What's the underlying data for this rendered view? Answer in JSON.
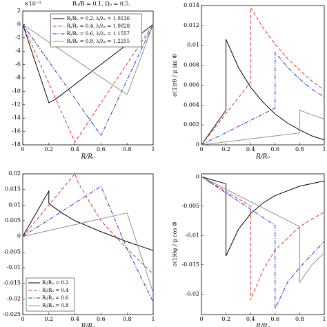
{
  "chart_data": [
    {
      "type": "line",
      "x_label": "R/Rₒ",
      "annotations": [
        "×10⁻³",
        "Rₒ/B = 0.1, Ωₒ = 0.5."
      ],
      "xlim": [
        0,
        1
      ],
      "xticks": [
        0,
        0.2,
        0.4,
        0.6,
        0.8,
        1
      ],
      "ylim": [
        -18,
        2
      ],
      "yticks": [
        2,
        0,
        -2,
        -4,
        -6,
        -8,
        -10,
        -12,
        -14,
        -16,
        -18
      ],
      "legend": "upper center",
      "series": [
        {
          "name": "Rᵢ/Rₒ = 0.2, λ/λₒ = 1.0236",
          "color": "#000000",
          "linestyle": "solid",
          "x": [
            0,
            0.2,
            0.25,
            1
          ],
          "values": [
            0,
            -11.7,
            -11.2,
            0
          ]
        },
        {
          "name": "Rᵢ/Rₒ = 0.4, λ/λₒ = 1.0828",
          "color": "#e03030",
          "linestyle": "dashed",
          "x": [
            0,
            0.4,
            1
          ],
          "values": [
            0,
            -17.6,
            0
          ]
        },
        {
          "name": "Rᵢ/Rₒ = 0.6, λ/λₒ = 1.1557",
          "color": "#2030d0",
          "linestyle": "dashdot",
          "x": [
            0,
            0.6,
            1
          ],
          "values": [
            0,
            -16.6,
            0
          ]
        },
        {
          "name": "Rᵢ/Rₒ = 0.8, λ/λₒ = 1.2255",
          "color": "#909090",
          "linestyle": "solid",
          "x": [
            0,
            0.8,
            1
          ],
          "values": [
            0,
            -10.5,
            0
          ]
        }
      ]
    },
    {
      "type": "line",
      "x_label": "R/Rₒ",
      "y_label": "σ(1)rθ / μ sin Φ",
      "xlim": [
        0,
        1
      ],
      "xticks": [
        0,
        0.2,
        0.4,
        0.6,
        0.8,
        1
      ],
      "ylim": [
        0,
        0.014
      ],
      "yticks": [
        0,
        0.002,
        0.004,
        0.006,
        0.008,
        0.01,
        0.012,
        0.014
      ],
      "series": [
        {
          "color": "#000000",
          "linestyle": "solid",
          "x": [
            0,
            0.2,
            0.2,
            0.3,
            0.4,
            0.5,
            0.6,
            0.7,
            0.8,
            0.9,
            1
          ],
          "values": [
            0,
            0.0035,
            0.0106,
            0.0078,
            0.0058,
            0.0043,
            0.0031,
            0.0022,
            0.0015,
            0.0009,
            0.0005
          ]
        },
        {
          "color": "#e03030",
          "linestyle": "dashed",
          "x": [
            0,
            0.4,
            0.4,
            0.5,
            0.6,
            0.7,
            0.8,
            0.9,
            1
          ],
          "values": [
            0,
            0.0063,
            0.0138,
            0.0118,
            0.0101,
            0.0087,
            0.0075,
            0.0064,
            0.0055
          ]
        },
        {
          "color": "#2030d0",
          "linestyle": "dashdot",
          "x": [
            0,
            0.6,
            0.6,
            0.7,
            0.8,
            0.9,
            1
          ],
          "values": [
            0,
            0.0037,
            0.0093,
            0.0078,
            0.0066,
            0.0056,
            0.0048
          ]
        },
        {
          "color": "#909090",
          "linestyle": "solid",
          "x": [
            0,
            0.8,
            0.8,
            0.9,
            1
          ],
          "values": [
            0,
            0.0012,
            0.0035,
            0.003,
            0.0026
          ]
        }
      ]
    },
    {
      "type": "line",
      "x_label": "R/Rₒ",
      "xlim": [
        0,
        1
      ],
      "xticks": [
        0,
        0.2,
        0.4,
        0.6,
        0.8,
        1
      ],
      "ylim": [
        -0.025,
        0.02
      ],
      "yticks": [
        0.02,
        0.015,
        0.01,
        0.005,
        0,
        -0.005,
        -0.01,
        -0.015,
        -0.02,
        -0.025
      ],
      "legend": "lower left",
      "series": [
        {
          "name": "Rᵢ/Rₒ = 0.2",
          "color": "#000000",
          "linestyle": "solid",
          "x": [
            0,
            0.2,
            0.2,
            0.3,
            0.4,
            0.6,
            0.8,
            1
          ],
          "values": [
            0,
            0.0145,
            0.0105,
            0.0075,
            0.005,
            0.0015,
            -0.0017,
            -0.0045
          ]
        },
        {
          "name": "Rᵢ/Rₒ = 0.4",
          "color": "#e03030",
          "linestyle": "dashed",
          "x": [
            0,
            0.4,
            0.42,
            0.6,
            0.8,
            1
          ],
          "values": [
            0,
            0.02,
            0.0175,
            0.005,
            -0.004,
            -0.012
          ]
        },
        {
          "name": "Rᵢ/Rₒ = 0.6",
          "color": "#2030d0",
          "linestyle": "dashdot",
          "x": [
            0,
            0.6,
            0.8,
            1
          ],
          "values": [
            0,
            0.016,
            -0.004,
            -0.021
          ]
        },
        {
          "name": "Rᵢ/Rₒ = 0.8",
          "color": "#909090",
          "linestyle": "solid",
          "x": [
            0,
            0.8,
            1
          ],
          "values": [
            0,
            0.0075,
            -0.018
          ]
        }
      ]
    },
    {
      "type": "line",
      "x_label": "R/Rₒ",
      "y_label": "σ(1)θφ / μ cos Φ",
      "xlim": [
        0,
        1
      ],
      "xticks": [
        0,
        0.2,
        0.4,
        0.6,
        0.8,
        1
      ],
      "ylim": [
        -0.0235,
        0.0005
      ],
      "yticks": [
        0,
        -0.005,
        -0.01,
        -0.015,
        -0.02
      ],
      "series": [
        {
          "color": "#000000",
          "linestyle": "solid",
          "x": [
            0,
            0.2,
            0.2,
            0.3,
            0.4,
            0.5,
            0.6,
            0.8,
            1
          ],
          "values": [
            0,
            -0.0012,
            -0.0135,
            -0.009,
            -0.0063,
            -0.0045,
            -0.0032,
            -0.0016,
            -0.0007
          ]
        },
        {
          "color": "#e03030",
          "linestyle": "dashed",
          "x": [
            0,
            0.4,
            0.4,
            0.5,
            0.6,
            0.8,
            1
          ],
          "values": [
            0,
            -0.005,
            -0.021,
            -0.016,
            -0.0125,
            -0.0085,
            -0.006
          ]
        },
        {
          "color": "#2030d0",
          "linestyle": "dashdot",
          "x": [
            0,
            0.6,
            0.6,
            0.7,
            0.8,
            1
          ],
          "values": [
            0,
            -0.0083,
            -0.0225,
            -0.018,
            -0.0155,
            -0.011
          ]
        },
        {
          "color": "#909090",
          "linestyle": "solid",
          "x": [
            0,
            0.8,
            0.8,
            0.9,
            1
          ],
          "values": [
            0,
            -0.0085,
            -0.018,
            -0.015,
            -0.013
          ]
        }
      ]
    }
  ]
}
